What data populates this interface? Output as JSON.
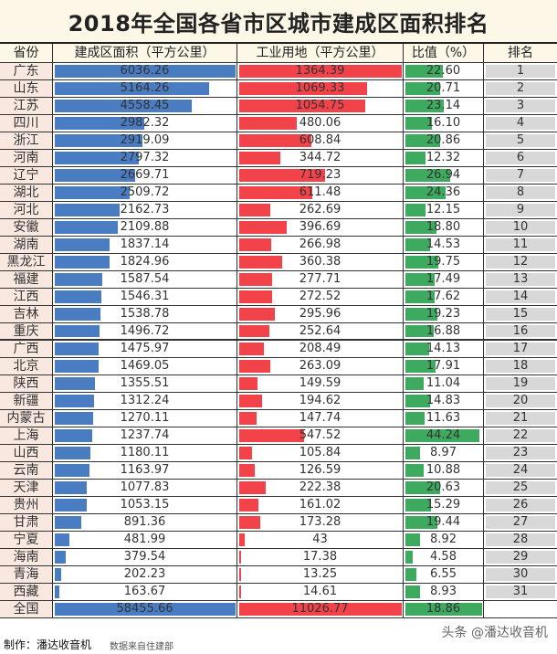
{
  "title": "2018年全国各省市区城市建成区面积排名",
  "headers": [
    "省份",
    "建成区面积（平方公里）",
    "工业用地（平方公里）",
    "比值（%）",
    "排名"
  ],
  "bar_max": {
    "area": 6036.26,
    "industrial": 1364.39,
    "ratio": 46
  },
  "colors": {
    "area": "#4a7cc2",
    "industrial": "#f2434b",
    "ratio": "#3daa5f",
    "rank": "#d8d8d8"
  },
  "rows": [
    {
      "province": "广东",
      "area": "6036.26",
      "industrial": "1364.39",
      "ratio": "22.60",
      "rank": "1"
    },
    {
      "province": "山东",
      "area": "5164.26",
      "industrial": "1069.33",
      "ratio": "20.71",
      "rank": "2"
    },
    {
      "province": "江苏",
      "area": "4558.45",
      "industrial": "1054.75",
      "ratio": "23.14",
      "rank": "3"
    },
    {
      "province": "四川",
      "area": "2982.32",
      "industrial": "480.06",
      "ratio": "16.10",
      "rank": "4"
    },
    {
      "province": "浙江",
      "area": "2919.09",
      "industrial": "608.84",
      "ratio": "20.86",
      "rank": "5"
    },
    {
      "province": "河南",
      "area": "2797.32",
      "industrial": "344.72",
      "ratio": "12.32",
      "rank": "6"
    },
    {
      "province": "辽宁",
      "area": "2669.71",
      "industrial": "719.23",
      "ratio": "26.94",
      "rank": "7"
    },
    {
      "province": "湖北",
      "area": "2509.72",
      "industrial": "611.48",
      "ratio": "24.36",
      "rank": "8"
    },
    {
      "province": "河北",
      "area": "2162.73",
      "industrial": "262.69",
      "ratio": "12.15",
      "rank": "9"
    },
    {
      "province": "安徽",
      "area": "2109.88",
      "industrial": "396.69",
      "ratio": "18.80",
      "rank": "10"
    },
    {
      "province": "湖南",
      "area": "1837.14",
      "industrial": "266.98",
      "ratio": "14.53",
      "rank": "11"
    },
    {
      "province": "黑龙江",
      "area": "1824.96",
      "industrial": "360.38",
      "ratio": "19.75",
      "rank": "12"
    },
    {
      "province": "福建",
      "area": "1587.54",
      "industrial": "277.71",
      "ratio": "17.49",
      "rank": "13"
    },
    {
      "province": "江西",
      "area": "1546.31",
      "industrial": "272.52",
      "ratio": "17.62",
      "rank": "14"
    },
    {
      "province": "吉林",
      "area": "1538.78",
      "industrial": "295.96",
      "ratio": "19.23",
      "rank": "15"
    },
    {
      "province": "重庆",
      "area": "1496.72",
      "industrial": "252.64",
      "ratio": "16.88",
      "rank": "16"
    },
    {
      "province": "广西",
      "area": "1475.97",
      "industrial": "208.49",
      "ratio": "14.13",
      "rank": "17"
    },
    {
      "province": "北京",
      "area": "1469.05",
      "industrial": "263.09",
      "ratio": "17.91",
      "rank": "18"
    },
    {
      "province": "陕西",
      "area": "1355.51",
      "industrial": "149.59",
      "ratio": "11.04",
      "rank": "19"
    },
    {
      "province": "新疆",
      "area": "1312.24",
      "industrial": "194.62",
      "ratio": "14.83",
      "rank": "20"
    },
    {
      "province": "内蒙古",
      "area": "1270.11",
      "industrial": "147.74",
      "ratio": "11.63",
      "rank": "21"
    },
    {
      "province": "上海",
      "area": "1237.74",
      "industrial": "547.52",
      "ratio": "44.24",
      "rank": "22"
    },
    {
      "province": "山西",
      "area": "1180.11",
      "industrial": "105.84",
      "ratio": "8.97",
      "rank": "23"
    },
    {
      "province": "云南",
      "area": "1163.97",
      "industrial": "126.59",
      "ratio": "10.88",
      "rank": "24"
    },
    {
      "province": "天津",
      "area": "1077.83",
      "industrial": "222.38",
      "ratio": "20.63",
      "rank": "25"
    },
    {
      "province": "贵州",
      "area": "1053.15",
      "industrial": "161.02",
      "ratio": "15.29",
      "rank": "26"
    },
    {
      "province": "甘肃",
      "area": "891.36",
      "industrial": "173.28",
      "ratio": "19.44",
      "rank": "27"
    },
    {
      "province": "宁夏",
      "area": "481.99",
      "industrial": "43",
      "ratio": "8.92",
      "rank": "28"
    },
    {
      "province": "海南",
      "area": "379.54",
      "industrial": "17.38",
      "ratio": "4.58",
      "rank": "29"
    },
    {
      "province": "青海",
      "area": "202.23",
      "industrial": "13.25",
      "ratio": "6.55",
      "rank": "30"
    },
    {
      "province": "西藏",
      "area": "163.67",
      "industrial": "14.61",
      "ratio": "8.93",
      "rank": "31"
    }
  ],
  "total": {
    "province": "全国",
    "area": "58455.66",
    "industrial": "11026.77",
    "ratio": "18.86"
  },
  "footer": {
    "credit": "制作：潘达收音机",
    "source": "数据来自住建部",
    "watermark": "头条 @潘达收音机"
  }
}
